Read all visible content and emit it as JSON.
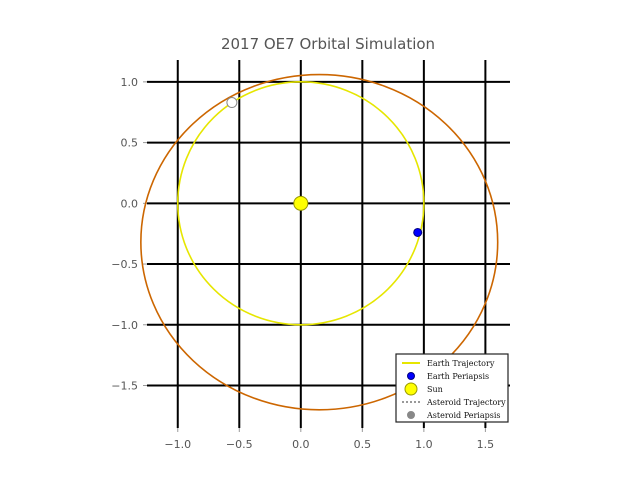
{
  "chart_data": {
    "type": "scatter",
    "title": "2017 OE7 Orbital Simulation",
    "xlabel": "",
    "ylabel": "",
    "xlim": [
      -1.25,
      1.7
    ],
    "ylim": [
      -1.85,
      1.18
    ],
    "grid": true,
    "x_ticks": [
      {
        "value": -1.0,
        "label": "−1.0"
      },
      {
        "value": -0.5,
        "label": "−0.5"
      },
      {
        "value": 0.0,
        "label": "0.0"
      },
      {
        "value": 0.5,
        "label": "0.5"
      },
      {
        "value": 1.0,
        "label": "1.0"
      },
      {
        "value": 1.5,
        "label": "1.5"
      }
    ],
    "y_ticks": [
      {
        "value": 1.0,
        "label": "1.0"
      },
      {
        "value": 0.5,
        "label": "0.5"
      },
      {
        "value": 0.0,
        "label": "0.0"
      },
      {
        "value": -0.5,
        "label": "−0.5"
      },
      {
        "value": -1.0,
        "label": "−1.0"
      },
      {
        "value": -1.5,
        "label": "−1.5"
      }
    ],
    "legend_position": "lower-right",
    "series": [
      {
        "name": "Earth Trajectory",
        "kind": "orbit",
        "center": [
          0.0,
          0.0
        ],
        "semi_axes": [
          1.0,
          1.0
        ],
        "color": "#e6e600"
      },
      {
        "name": "Earth Periapsis",
        "kind": "point",
        "x": 0.95,
        "y": -0.24,
        "color": "#0000ff"
      },
      {
        "name": "Sun",
        "kind": "point",
        "x": 0.0,
        "y": 0.0,
        "color": "#ffff00"
      },
      {
        "name": "Asteroid Trajectory",
        "kind": "orbit",
        "center": [
          0.15,
          -0.32
        ],
        "semi_axes": [
          1.45,
          1.38
        ],
        "color": "#cc6600"
      },
      {
        "name": "Asteroid Periapsis",
        "kind": "point",
        "x": -0.56,
        "y": 0.83,
        "color": "#ffffff"
      }
    ]
  }
}
